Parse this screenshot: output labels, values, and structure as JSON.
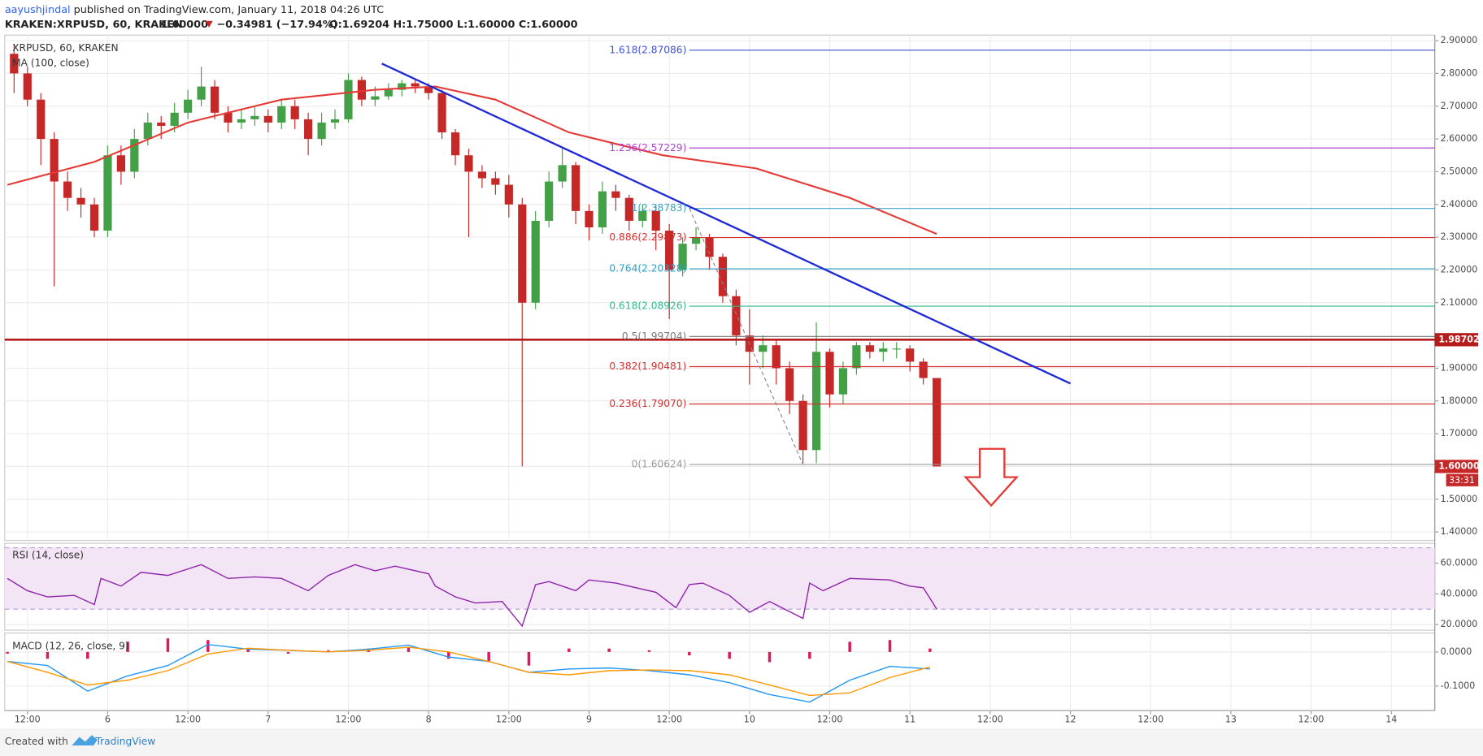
{
  "header": {
    "author": "aayushjindal",
    "published": " published on TradingView.com, January 11, 2018 04:26 UTC",
    "symbol": "KRAKEN:XRPUSD, 60, KRAKEN",
    "last": "1.60000",
    "change": "−0.34981 (−17.94%)",
    "ohlc": "O:1.69204 H:1.75000 L:1.60000 C:1.60000"
  },
  "footer": {
    "created": "Created with",
    "brand": "TradingView"
  },
  "chart_data": [
    {
      "type": "candlestick",
      "title": "XRPUSD, 60, KRAKEN",
      "x": [
        -2,
        0,
        2,
        4,
        6,
        8,
        10,
        12,
        14,
        16,
        18,
        20,
        22,
        24,
        26,
        28,
        30,
        32,
        34,
        36,
        38,
        40,
        42,
        44,
        46,
        48,
        50,
        52,
        54,
        56,
        58,
        60,
        62,
        64,
        66,
        68,
        70,
        72,
        74,
        76,
        78,
        80,
        82,
        84,
        86,
        88,
        90,
        92,
        94,
        96,
        98,
        100,
        102,
        104,
        106,
        108,
        110,
        112,
        114,
        116,
        118,
        120,
        122,
        124,
        126,
        128,
        130,
        132,
        134,
        136
      ],
      "open": [
        2.86,
        2.8,
        2.72,
        2.6,
        2.47,
        2.42,
        2.4,
        2.32,
        2.55,
        2.5,
        2.6,
        2.65,
        2.64,
        2.68,
        2.72,
        2.76,
        2.68,
        2.65,
        2.66,
        2.67,
        2.65,
        2.7,
        2.66,
        2.6,
        2.65,
        2.66,
        2.78,
        2.72,
        2.73,
        2.75,
        2.77,
        2.76,
        2.74,
        2.62,
        2.55,
        2.5,
        2.48,
        2.46,
        2.4,
        2.1,
        2.35,
        2.47,
        2.52,
        2.38,
        2.33,
        2.44,
        2.42,
        2.35,
        2.38,
        2.32,
        2.2,
        2.28,
        2.3,
        2.24,
        2.12,
        2.0,
        1.95,
        1.97,
        1.9,
        1.8,
        1.65,
        1.95,
        1.82,
        1.9,
        1.97,
        1.95,
        1.96,
        1.96,
        1.92,
        1.87
      ],
      "high": [
        2.89,
        2.82,
        2.74,
        2.62,
        2.5,
        2.45,
        2.42,
        2.58,
        2.58,
        2.63,
        2.68,
        2.67,
        2.71,
        2.75,
        2.82,
        2.78,
        2.7,
        2.69,
        2.7,
        2.69,
        2.72,
        2.72,
        2.68,
        2.68,
        2.69,
        2.8,
        2.79,
        2.76,
        2.77,
        2.78,
        2.78,
        2.77,
        2.75,
        2.63,
        2.57,
        2.52,
        2.5,
        2.49,
        2.42,
        2.38,
        2.5,
        2.57,
        2.53,
        2.4,
        2.47,
        2.46,
        2.43,
        2.4,
        2.4,
        2.34,
        2.3,
        2.33,
        2.31,
        2.25,
        2.14,
        2.08,
        2.0,
        1.99,
        1.92,
        1.82,
        2.04,
        1.96,
        1.92,
        1.98,
        1.98,
        1.98,
        1.98,
        1.97,
        1.93,
        1.87
      ],
      "low": [
        2.74,
        2.7,
        2.52,
        2.15,
        2.38,
        2.36,
        2.3,
        2.3,
        2.46,
        2.48,
        2.58,
        2.6,
        2.62,
        2.66,
        2.7,
        2.66,
        2.62,
        2.63,
        2.64,
        2.62,
        2.63,
        2.63,
        2.55,
        2.58,
        2.63,
        2.65,
        2.7,
        2.7,
        2.72,
        2.73,
        2.74,
        2.72,
        2.6,
        2.52,
        2.3,
        2.45,
        2.43,
        2.36,
        1.6,
        2.08,
        2.33,
        2.45,
        2.34,
        2.29,
        2.31,
        2.38,
        2.32,
        2.33,
        2.26,
        2.05,
        2.18,
        2.26,
        2.2,
        2.1,
        1.97,
        1.85,
        1.9,
        1.85,
        1.76,
        1.61,
        1.61,
        1.78,
        1.79,
        1.88,
        1.93,
        1.92,
        1.93,
        1.89,
        1.85,
        1.6
      ],
      "close": [
        2.8,
        2.72,
        2.6,
        2.47,
        2.42,
        2.4,
        2.32,
        2.55,
        2.5,
        2.6,
        2.65,
        2.64,
        2.68,
        2.72,
        2.76,
        2.68,
        2.65,
        2.66,
        2.67,
        2.65,
        2.7,
        2.66,
        2.6,
        2.65,
        2.66,
        2.78,
        2.72,
        2.73,
        2.75,
        2.77,
        2.76,
        2.74,
        2.62,
        2.55,
        2.5,
        2.48,
        2.46,
        2.4,
        2.1,
        2.35,
        2.47,
        2.52,
        2.38,
        2.33,
        2.44,
        2.42,
        2.35,
        2.38,
        2.32,
        2.2,
        2.28,
        2.3,
        2.24,
        2.12,
        2.0,
        1.95,
        1.97,
        1.9,
        1.8,
        1.65,
        1.95,
        1.82,
        1.9,
        1.97,
        1.95,
        1.96,
        1.96,
        1.92,
        1.87,
        1.6
      ],
      "up_color": "#43a047",
      "down_color": "#c62828",
      "overlays": [
        {
          "name": "MA (100, close)",
          "color": "#e53935",
          "x": [
            -3,
            10,
            24,
            38,
            52,
            61,
            70,
            81,
            95,
            109,
            123,
            136
          ],
          "values": [
            2.46,
            2.53,
            2.65,
            2.72,
            2.75,
            2.76,
            2.72,
            2.62,
            2.55,
            2.51,
            2.42,
            2.31
          ]
        }
      ],
      "trendline": {
        "color": "#1e2ad6",
        "x": [
          53,
          156
        ],
        "values": [
          2.83,
          1.853
        ]
      },
      "fib": {
        "x_start": 99,
        "levels": [
          {
            "value": 2.87086,
            "label": "1.618(2.87086)",
            "color": "#3f51d6"
          },
          {
            "value": 2.57229,
            "label": "1.236(2.57229)",
            "color": "#b040d0"
          },
          {
            "value": 2.38783,
            "label": "1(2.38783)",
            "color": "#3ba3c8"
          },
          {
            "value": 2.29873,
            "label": "0.886(2.29873)",
            "color": "#d32f2f"
          },
          {
            "value": 2.20328,
            "label": "0.764(2.20328)",
            "color": "#2a9fc4"
          },
          {
            "value": 2.08926,
            "label": "0.618(2.08926)",
            "color": "#2eb88a"
          },
          {
            "value": 1.99704,
            "label": "0.5(1.99704)",
            "color": "#777777"
          },
          {
            "value": 1.90481,
            "label": "0.382(1.90481)",
            "color": "#d32f2f"
          },
          {
            "value": 1.7907,
            "label": "0.236(1.79070)",
            "color": "#d32f2f"
          },
          {
            "value": 1.60624,
            "label": "0(1.60624)",
            "color": "#999999"
          }
        ]
      },
      "hline": {
        "value": 1.98702,
        "label": "1.98702",
        "color": "#b71c1c"
      },
      "last_price": {
        "value": 1.6,
        "label": "1.60000",
        "color": "#c62828"
      },
      "countdown": "33:31",
      "xlim": [
        -3.4,
        210.5
      ],
      "ylim": [
        1.374,
        2.917
      ],
      "xticks": [
        {
          "value": 0,
          "label": "12:00"
        },
        {
          "value": 12,
          "label": "6"
        },
        {
          "value": 24,
          "label": "12:00"
        },
        {
          "value": 36,
          "label": "7"
        },
        {
          "value": 48,
          "label": "12:00"
        },
        {
          "value": 60,
          "label": "8"
        },
        {
          "value": 72,
          "label": "12:00"
        },
        {
          "value": 84,
          "label": "9"
        },
        {
          "value": 96,
          "label": "12:00"
        },
        {
          "value": 108,
          "label": "10"
        },
        {
          "value": 120,
          "label": "12:00"
        },
        {
          "value": 132,
          "label": "11"
        },
        {
          "value": 144,
          "label": "12:00"
        },
        {
          "value": 156,
          "label": "12"
        },
        {
          "value": 168,
          "label": "12:00"
        },
        {
          "value": 180,
          "label": "13"
        },
        {
          "value": 192,
          "label": "12:00"
        },
        {
          "value": 204,
          "label": "14"
        }
      ],
      "yticks": [
        {
          "value": 1.4,
          "label": "1.40000"
        },
        {
          "value": 1.5,
          "label": "1.50000"
        },
        {
          "value": 1.6,
          "label": "1.60000"
        },
        {
          "value": 1.7,
          "label": "1.70000"
        },
        {
          "value": 1.8,
          "label": "1.80000"
        },
        {
          "value": 1.9,
          "label": "1.90000"
        },
        {
          "value": 2.1,
          "label": "2.10000"
        },
        {
          "value": 2.2,
          "label": "2.20000"
        },
        {
          "value": 2.3,
          "label": "2.30000"
        },
        {
          "value": 2.4,
          "label": "2.40000"
        },
        {
          "value": 2.5,
          "label": "2.50000"
        },
        {
          "value": 2.6,
          "label": "2.60000"
        },
        {
          "value": 2.7,
          "label": "2.70000"
        },
        {
          "value": 2.8,
          "label": "2.80000"
        },
        {
          "value": 2.9,
          "label": "2.90000"
        }
      ],
      "grid": true
    },
    {
      "type": "line",
      "title": "RSI (14, close)",
      "color": "#8e24aa",
      "x": [
        -3,
        0,
        3,
        7,
        10,
        11,
        14,
        17,
        21,
        26,
        30,
        34,
        38,
        42,
        45,
        49,
        52,
        55,
        60,
        61,
        64,
        67,
        71,
        74,
        76,
        78,
        82,
        84,
        88,
        94,
        97,
        99,
        101,
        105,
        108,
        111,
        116,
        117,
        119,
        123,
        129,
        132,
        134,
        136
      ],
      "values": [
        50,
        42,
        38,
        39,
        33,
        50,
        45,
        54,
        52,
        59,
        50,
        51,
        50,
        42,
        52,
        59,
        55,
        58,
        53,
        45,
        38,
        34,
        35,
        19,
        46,
        48,
        42,
        49,
        47,
        41,
        31,
        46,
        47,
        39,
        28,
        35,
        24,
        47,
        42,
        50,
        49,
        45,
        44,
        30
      ],
      "band": [
        30,
        70
      ],
      "band_color": "#f3e5f5",
      "ylim": [
        16.3,
        72.9
      ],
      "yticks": [
        {
          "value": 20,
          "label": "20.0000"
        },
        {
          "value": 40,
          "label": "40.0000"
        },
        {
          "value": 60,
          "label": "60.0000"
        }
      ]
    },
    {
      "type": "macd",
      "title": "MACD (12, 26, close, 9)",
      "x": [
        -3,
        3,
        9,
        15,
        21,
        27,
        33,
        39,
        45,
        51,
        57,
        63,
        69,
        75,
        81,
        87,
        93,
        99,
        105,
        111,
        117,
        123,
        129,
        135
      ],
      "series": [
        {
          "color": "#2196f3",
          "values": [
            -0.028,
            -0.04,
            -0.115,
            -0.07,
            -0.04,
            0.022,
            0.008,
            0.005,
            0,
            0.008,
            0.02,
            -0.015,
            -0.028,
            -0.06,
            -0.05,
            -0.047,
            -0.055,
            -0.067,
            -0.09,
            -0.125,
            -0.147,
            -0.083,
            -0.042,
            -0.05
          ]
        },
        {
          "color": "#ff9800",
          "values": [
            -0.028,
            -0.06,
            -0.097,
            -0.083,
            -0.055,
            -0.006,
            0.011,
            0.005,
            0,
            0.005,
            0.014,
            0,
            -0.028,
            -0.06,
            -0.067,
            -0.055,
            -0.053,
            -0.055,
            -0.067,
            -0.097,
            -0.128,
            -0.12,
            -0.075,
            -0.044
          ]
        }
      ],
      "histogram": {
        "color": "#d81b60",
        "values": [
          -0.005,
          -0.02,
          -0.02,
          0.03,
          0.04,
          0.035,
          0.01,
          -0.005,
          0.005,
          0.01,
          0.015,
          -0.02,
          -0.03,
          -0.04,
          0.01,
          0.01,
          0.005,
          -0.01,
          -0.02,
          -0.03,
          -0.02,
          0.03,
          0.035,
          0.01
        ]
      },
      "ylim": [
        -0.172,
        0.0556
      ],
      "yticks": [
        {
          "value": 0,
          "label": "0.0000"
        },
        {
          "value": -0.1,
          "label": "-0.1000"
        }
      ]
    }
  ]
}
